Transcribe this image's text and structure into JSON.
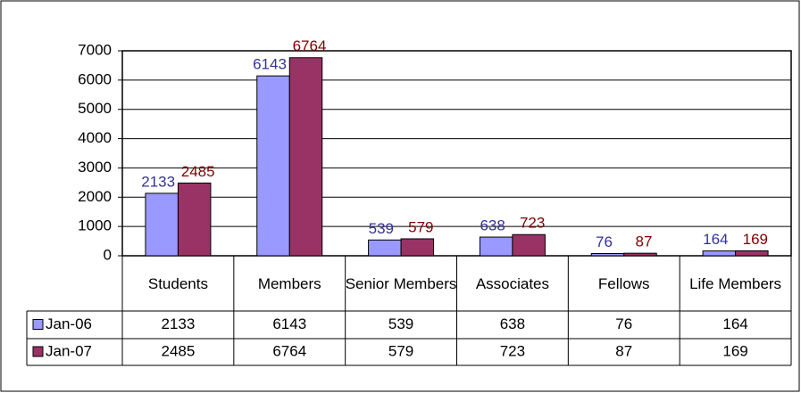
{
  "chart_data": {
    "type": "bar",
    "categories": [
      "Students",
      "Members",
      "Senior Members",
      "Associates",
      "Fellows",
      "Life Members"
    ],
    "series": [
      {
        "name": "Jan-06",
        "color": "#9999ff",
        "values": [
          2133,
          6143,
          539,
          638,
          76,
          164
        ]
      },
      {
        "name": "Jan-07",
        "color": "#993366",
        "values": [
          2485,
          6764,
          579,
          723,
          87,
          169
        ]
      }
    ],
    "ylim": [
      0,
      7000
    ],
    "yticks": [
      0,
      1000,
      2000,
      3000,
      4000,
      5000,
      6000,
      7000
    ],
    "grid": true
  }
}
